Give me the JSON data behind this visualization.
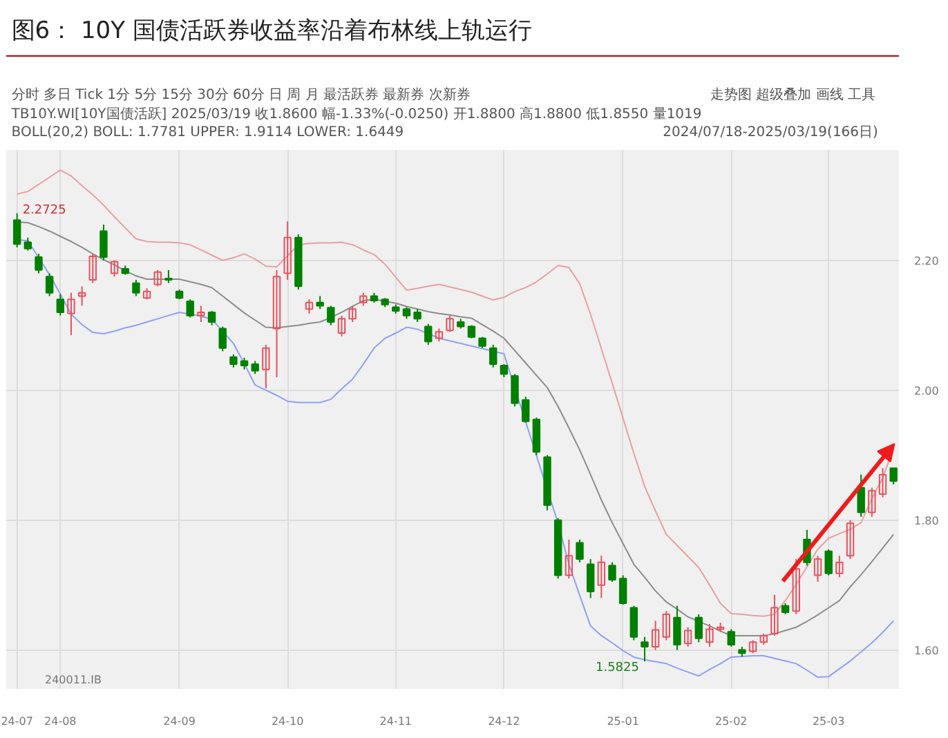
{
  "chart_data": {
    "type": "candlestick",
    "title": "图6：  10Y 国债活跃券收益率沿着布林线上轨运行",
    "categories": [
      "24-07",
      null,
      null,
      null,
      "24-08",
      null,
      null,
      null,
      null,
      null,
      null,
      null,
      null,
      null,
      null,
      "24-09",
      null,
      null,
      null,
      null,
      null,
      null,
      null,
      null,
      null,
      "24-10",
      null,
      null,
      null,
      null,
      null,
      null,
      null,
      null,
      null,
      "24-11",
      null,
      null,
      null,
      null,
      null,
      null,
      null,
      null,
      null,
      "24-12",
      null,
      null,
      null,
      null,
      null,
      null,
      null,
      null,
      null,
      null,
      "25-01",
      null,
      null,
      null,
      null,
      null,
      null,
      null,
      null,
      null,
      "25-02",
      null,
      null,
      null,
      null,
      null,
      null,
      null,
      null,
      "25-03",
      null,
      null,
      null,
      null,
      null,
      null
    ],
    "ohlc": [
      [
        2.262,
        2.2725,
        2.22,
        2.225
      ],
      [
        2.228,
        2.235,
        2.215,
        2.218
      ],
      [
        2.205,
        2.21,
        2.18,
        2.185
      ],
      [
        2.175,
        2.18,
        2.145,
        2.15
      ],
      [
        2.14,
        2.148,
        2.115,
        2.12
      ],
      [
        2.118,
        2.15,
        2.085,
        2.14
      ],
      [
        2.145,
        2.16,
        2.13,
        2.15
      ],
      [
        2.17,
        2.21,
        2.165,
        2.206
      ],
      [
        2.245,
        2.255,
        2.2,
        2.205
      ],
      [
        2.18,
        2.2,
        2.175,
        2.198
      ],
      [
        2.187,
        2.192,
        2.178,
        2.18
      ],
      [
        2.165,
        2.17,
        2.145,
        2.15
      ],
      [
        2.142,
        2.157,
        2.14,
        2.152
      ],
      [
        2.163,
        2.185,
        2.16,
        2.182
      ],
      [
        2.172,
        2.185,
        2.165,
        2.17
      ],
      [
        2.152,
        2.155,
        2.14,
        2.142
      ],
      [
        2.137,
        2.14,
        2.112,
        2.115
      ],
      [
        2.115,
        2.13,
        2.105,
        2.12
      ],
      [
        2.12,
        2.122,
        2.1,
        2.105
      ],
      [
        2.095,
        2.098,
        2.06,
        2.065
      ],
      [
        2.051,
        2.055,
        2.035,
        2.04
      ],
      [
        2.045,
        2.05,
        2.032,
        2.038
      ],
      [
        2.04,
        2.045,
        2.025,
        2.03
      ],
      [
        2.032,
        2.07,
        2.003,
        2.065
      ],
      [
        2.095,
        2.185,
        2.02,
        2.175
      ],
      [
        2.18,
        2.26,
        2.17,
        2.235
      ],
      [
        2.235,
        2.24,
        2.155,
        2.16
      ],
      [
        2.125,
        2.14,
        2.118,
        2.135
      ],
      [
        2.135,
        2.145,
        2.125,
        2.13
      ],
      [
        2.127,
        2.13,
        2.1,
        2.105
      ],
      [
        2.088,
        2.115,
        2.083,
        2.11
      ],
      [
        2.11,
        2.13,
        2.105,
        2.125
      ],
      [
        2.135,
        2.15,
        2.13,
        2.145
      ],
      [
        2.145,
        2.15,
        2.135,
        2.138
      ],
      [
        2.14,
        2.142,
        2.128,
        2.132
      ],
      [
        2.128,
        2.132,
        2.118,
        2.122
      ],
      [
        2.125,
        2.128,
        2.11,
        2.115
      ],
      [
        2.12,
        2.125,
        2.105,
        2.11
      ],
      [
        2.098,
        2.102,
        2.07,
        2.075
      ],
      [
        2.08,
        2.095,
        2.075,
        2.09
      ],
      [
        2.092,
        2.115,
        2.09,
        2.11
      ],
      [
        2.105,
        2.11,
        2.095,
        2.098
      ],
      [
        2.098,
        2.1,
        2.08,
        2.082
      ],
      [
        2.08,
        2.082,
        2.065,
        2.068
      ],
      [
        2.065,
        2.07,
        2.035,
        2.04
      ],
      [
        2.038,
        2.04,
        2.02,
        2.025
      ],
      [
        2.022,
        2.025,
        1.975,
        1.98
      ],
      [
        1.985,
        1.99,
        1.95,
        1.952
      ],
      [
        1.955,
        1.958,
        1.9,
        1.905
      ],
      [
        1.897,
        1.9,
        1.815,
        1.823
      ],
      [
        1.8,
        1.803,
        1.71,
        1.715
      ],
      [
        1.715,
        1.77,
        1.71,
        1.745
      ],
      [
        1.765,
        1.77,
        1.735,
        1.74
      ],
      [
        1.732,
        1.74,
        1.68,
        1.69
      ],
      [
        1.7,
        1.745,
        1.68,
        1.735
      ],
      [
        1.73,
        1.735,
        1.705,
        1.708
      ],
      [
        1.71,
        1.715,
        1.67,
        1.672
      ],
      [
        1.665,
        1.668,
        1.615,
        1.62
      ],
      [
        1.612,
        1.62,
        1.5825,
        1.605
      ],
      [
        1.605,
        1.645,
        1.6,
        1.631
      ],
      [
        1.62,
        1.66,
        1.615,
        1.655
      ],
      [
        1.65,
        1.668,
        1.6,
        1.608
      ],
      [
        1.61,
        1.635,
        1.605,
        1.63
      ],
      [
        1.65,
        1.655,
        1.612,
        1.618
      ],
      [
        1.612,
        1.64,
        1.605,
        1.632
      ],
      [
        1.632,
        1.642,
        1.628,
        1.635
      ],
      [
        1.628,
        1.632,
        1.605,
        1.608
      ],
      [
        1.6,
        1.605,
        1.59,
        1.595
      ],
      [
        1.598,
        1.615,
        1.595,
        1.612
      ],
      [
        1.612,
        1.625,
        1.608,
        1.622
      ],
      [
        1.625,
        1.685,
        1.622,
        1.665
      ],
      [
        1.668,
        1.672,
        1.655,
        1.658
      ],
      [
        1.66,
        1.74,
        1.655,
        1.725
      ],
      [
        1.77,
        1.785,
        1.73,
        1.735
      ],
      [
        1.715,
        1.745,
        1.705,
        1.74
      ],
      [
        1.752,
        1.755,
        1.715,
        1.718
      ],
      [
        1.718,
        1.745,
        1.712,
        1.735
      ],
      [
        1.745,
        1.8,
        1.74,
        1.795
      ],
      [
        1.85,
        1.87,
        1.805,
        1.812
      ],
      [
        1.812,
        1.85,
        1.805,
        1.845
      ],
      [
        1.84,
        1.88,
        1.835,
        1.87
      ],
      [
        1.88,
        1.88,
        1.855,
        1.86
      ]
    ],
    "colors": [
      "#008000",
      "#008000",
      "#008000",
      "#008000",
      "#008000",
      "#e8505b",
      "#e8505b",
      "#e8505b",
      "#008000",
      "#e8505b",
      "#008000",
      "#008000",
      "#e8505b",
      "#e8505b",
      "#008000",
      "#008000",
      "#008000",
      "#e8505b",
      "#008000",
      "#008000",
      "#008000",
      "#008000",
      "#008000",
      "#e8505b",
      "#e8505b",
      "#e8505b",
      "#008000",
      "#e8505b",
      "#008000",
      "#008000",
      "#e8505b",
      "#e8505b",
      "#e8505b",
      "#008000",
      "#008000",
      "#008000",
      "#008000",
      "#008000",
      "#008000",
      "#e8505b",
      "#e8505b",
      "#008000",
      "#008000",
      "#008000",
      "#008000",
      "#008000",
      "#008000",
      "#008000",
      "#008000",
      "#008000",
      "#008000",
      "#e8505b",
      "#008000",
      "#008000",
      "#e8505b",
      "#008000",
      "#008000",
      "#008000",
      "#008000",
      "#e8505b",
      "#e8505b",
      "#008000",
      "#e8505b",
      "#008000",
      "#e8505b",
      "#e8505b",
      "#008000",
      "#008000",
      "#e8505b",
      "#e8505b",
      "#e8505b",
      "#008000",
      "#e8505b",
      "#008000",
      "#e8505b",
      "#008000",
      "#e8505b",
      "#e8505b",
      "#008000",
      "#e8505b",
      "#e8505b",
      "#008000"
    ],
    "series": [
      {
        "type": "line",
        "color": "#e8a0a0",
        "values": [
          2.302,
          2.306,
          2.317,
          2.328,
          2.339,
          2.33,
          2.315,
          2.301,
          2.285,
          2.267,
          2.25,
          2.233,
          2.229,
          2.228,
          2.228,
          2.227,
          2.224,
          2.216,
          2.208,
          2.2,
          2.204,
          2.21,
          2.202,
          2.191,
          2.19,
          2.207,
          2.224,
          2.226,
          2.227,
          2.227,
          2.228,
          2.224,
          2.216,
          2.209,
          2.194,
          2.174,
          2.154,
          2.157,
          2.16,
          2.163,
          2.159,
          2.155,
          2.151,
          2.145,
          2.139,
          2.143,
          2.152,
          2.158,
          2.167,
          2.179,
          2.192,
          2.189,
          2.164,
          2.117,
          2.064,
          2.011,
          1.957,
          1.903,
          1.852,
          1.814,
          1.778,
          1.761,
          1.744,
          1.727,
          1.7,
          1.672,
          1.656,
          1.655,
          1.653,
          1.652,
          1.655,
          1.676,
          1.701,
          1.728,
          1.755,
          1.772,
          1.779,
          1.786,
          1.796,
          1.833,
          1.865,
          1.911
        ]
      },
      {
        "type": "line",
        "color": "#8c8c8c",
        "values": [
          2.259,
          2.258,
          2.252,
          2.245,
          2.237,
          2.229,
          2.22,
          2.21,
          2.201,
          2.193,
          2.184,
          2.176,
          2.171,
          2.171,
          2.171,
          2.171,
          2.167,
          2.163,
          2.158,
          2.145,
          2.132,
          2.119,
          2.108,
          2.097,
          2.096,
          2.098,
          2.1,
          2.103,
          2.105,
          2.112,
          2.12,
          2.129,
          2.138,
          2.14,
          2.137,
          2.134,
          2.129,
          2.125,
          2.121,
          2.118,
          2.116,
          2.113,
          2.111,
          2.101,
          2.091,
          2.08,
          2.061,
          2.042,
          2.023,
          2.004,
          1.975,
          1.942,
          1.908,
          1.87,
          1.831,
          1.796,
          1.764,
          1.732,
          1.712,
          1.691,
          1.674,
          1.663,
          1.651,
          1.644,
          1.637,
          1.629,
          1.622,
          1.622,
          1.622,
          1.622,
          1.625,
          1.63,
          1.635,
          1.644,
          1.654,
          1.665,
          1.676,
          1.697,
          1.716,
          1.736,
          1.757,
          1.778
        ]
      },
      {
        "type": "line",
        "color": "#8ea0f0",
        "values": [
          2.232,
          2.23,
          2.204,
          2.178,
          2.148,
          2.117,
          2.101,
          2.089,
          2.087,
          2.091,
          2.096,
          2.1,
          2.105,
          2.11,
          2.115,
          2.12,
          2.117,
          2.114,
          2.109,
          2.091,
          2.072,
          2.041,
          2.008,
          2.0,
          1.992,
          1.983,
          1.981,
          1.981,
          1.981,
          1.986,
          2.002,
          2.017,
          2.04,
          2.065,
          2.08,
          2.088,
          2.097,
          2.094,
          2.087,
          2.08,
          2.076,
          2.072,
          2.068,
          2.064,
          2.06,
          2.056,
          null,
          null,
          null,
          null,
          1.795,
          1.732,
          1.684,
          1.637,
          1.622,
          1.611,
          1.599,
          1.589,
          1.585,
          1.582,
          1.579,
          1.572,
          1.566,
          1.56,
          1.57,
          1.579,
          1.589,
          1.59,
          1.591,
          1.591,
          1.587,
          1.583,
          1.579,
          1.569,
          1.558,
          1.559,
          1.571,
          1.583,
          1.597,
          1.611,
          1.627,
          1.645
        ]
      }
    ],
    "ylim": [
      1.54,
      2.37
    ],
    "yticks": [
      {
        "value": 1.6,
        "label": "1.60"
      },
      {
        "value": 1.8,
        "label": "1.80"
      },
      {
        "value": 2.0,
        "label": "2.00"
      },
      {
        "value": 2.2,
        "label": "2.20"
      }
    ],
    "grid": true,
    "annotations": [
      "分时  多日  Tick  1分  5分  15分  30分  60分  日  周  月    最活跃券  最新券  次新券",
      "走势图  超级叠加  画线  工具",
      "TB10Y.WI[10Y国债活跃]  2025/03/19  收1.8600  幅-1.33%(-0.0250)  开1.8800  高1.8800  低1.8550  量1019",
      "BOLL(20,2)  BOLL: 1.7781  UPPER: 1.9114  LOWER: 1.6449",
      "2024/07/18-2025/03/19(166日)",
      "240011.IB",
      "2.2725",
      "1.5825"
    ]
  }
}
